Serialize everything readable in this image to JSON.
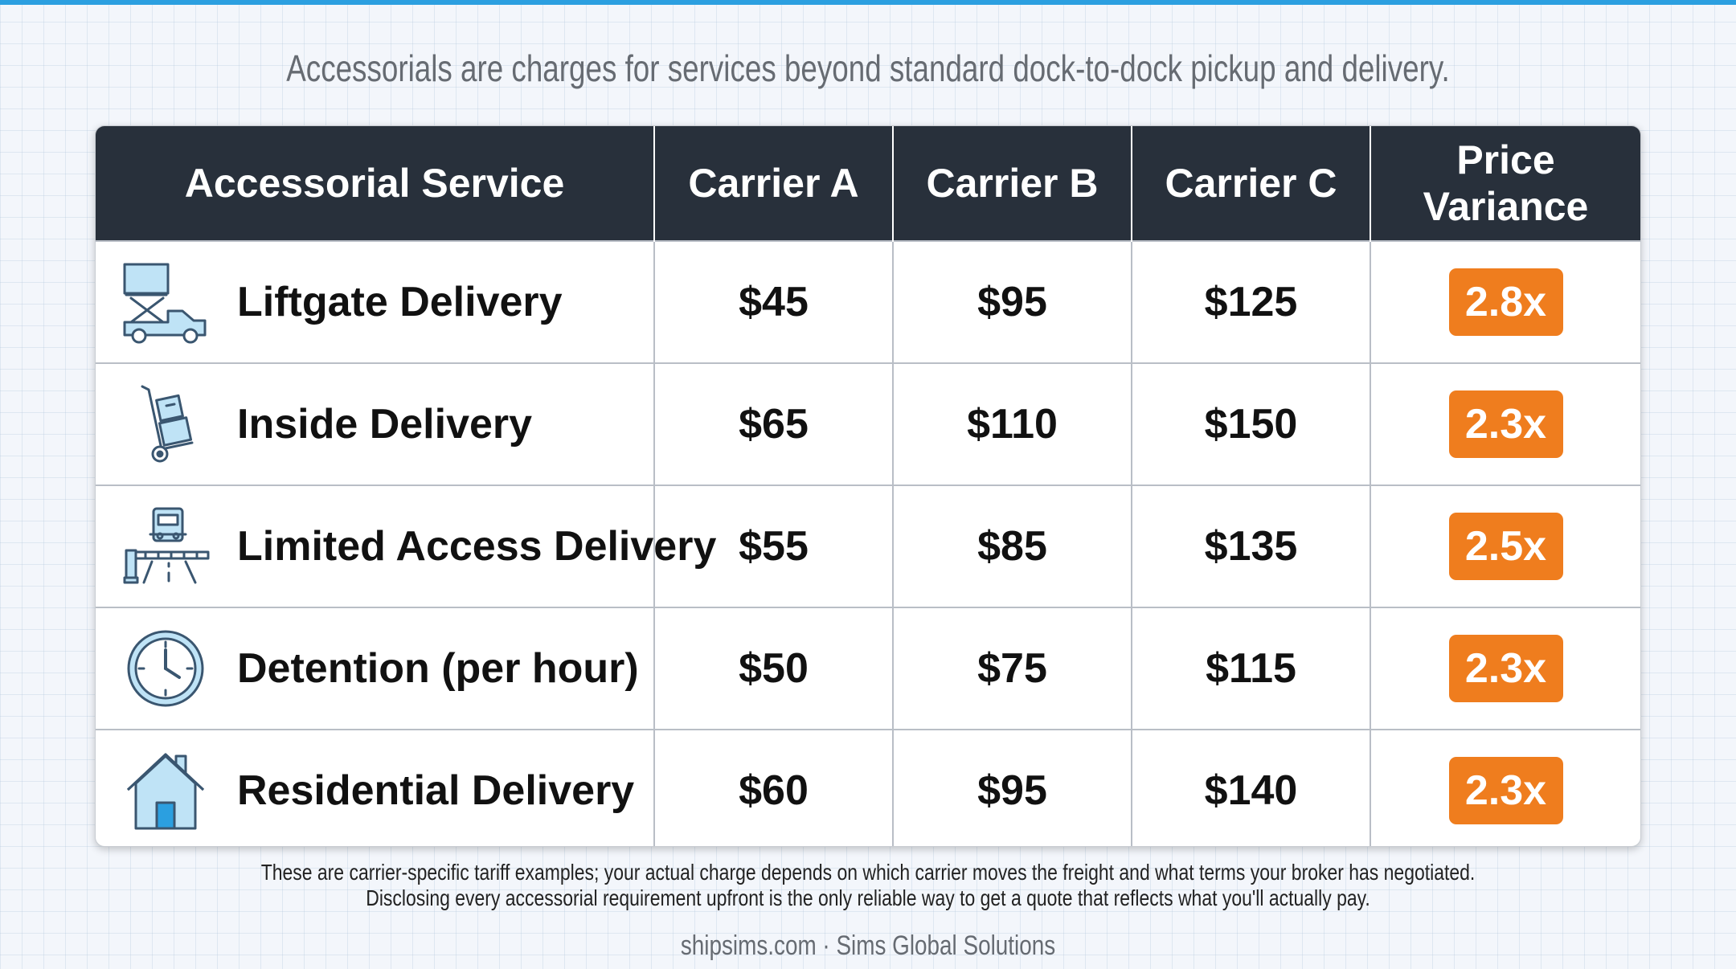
{
  "subtitle": "Accessorials are charges for services beyond standard dock-to-dock pickup and delivery.",
  "table": {
    "headers": [
      "Accessorial Service",
      "Carrier A",
      "Carrier B",
      "Carrier C",
      "Price Variance"
    ],
    "rows": [
      {
        "icon": "liftgate-truck-icon",
        "service": "Liftgate Delivery",
        "carrier_a": "$45",
        "carrier_b": "$95",
        "carrier_c": "$125",
        "variance": "2.8x"
      },
      {
        "icon": "hand-truck-icon",
        "service": "Inside Delivery",
        "carrier_a": "$65",
        "carrier_b": "$110",
        "carrier_c": "$150",
        "variance": "2.3x"
      },
      {
        "icon": "gate-barrier-truck-icon",
        "service": "Limited Access Delivery",
        "carrier_a": "$55",
        "carrier_b": "$85",
        "carrier_c": "$135",
        "variance": "2.5x"
      },
      {
        "icon": "clock-icon",
        "service": "Detention (per hour)",
        "carrier_a": "$50",
        "carrier_b": "$75",
        "carrier_c": "$115",
        "variance": "2.3x"
      },
      {
        "icon": "house-icon",
        "service": "Residential Delivery",
        "carrier_a": "$60",
        "carrier_b": "$95",
        "carrier_c": "$140",
        "variance": "2.3x"
      }
    ]
  },
  "footnote": {
    "line1": "These are carrier-specific tariff examples; your actual charge depends on which carrier moves the freight and what terms your broker has negotiated.",
    "line2": "Disclosing every accessorial requirement upfront is the only reliable way to get a quote that reflects what you'll actually pay."
  },
  "source": "shipsims.com · Sims Global Solutions",
  "colors": {
    "header_bg": "#28303b",
    "badge": "#ef7d1e",
    "icon_fill": "#bfe3f6",
    "icon_stroke": "#3a5670",
    "accent_bar": "#2b9fe0"
  }
}
